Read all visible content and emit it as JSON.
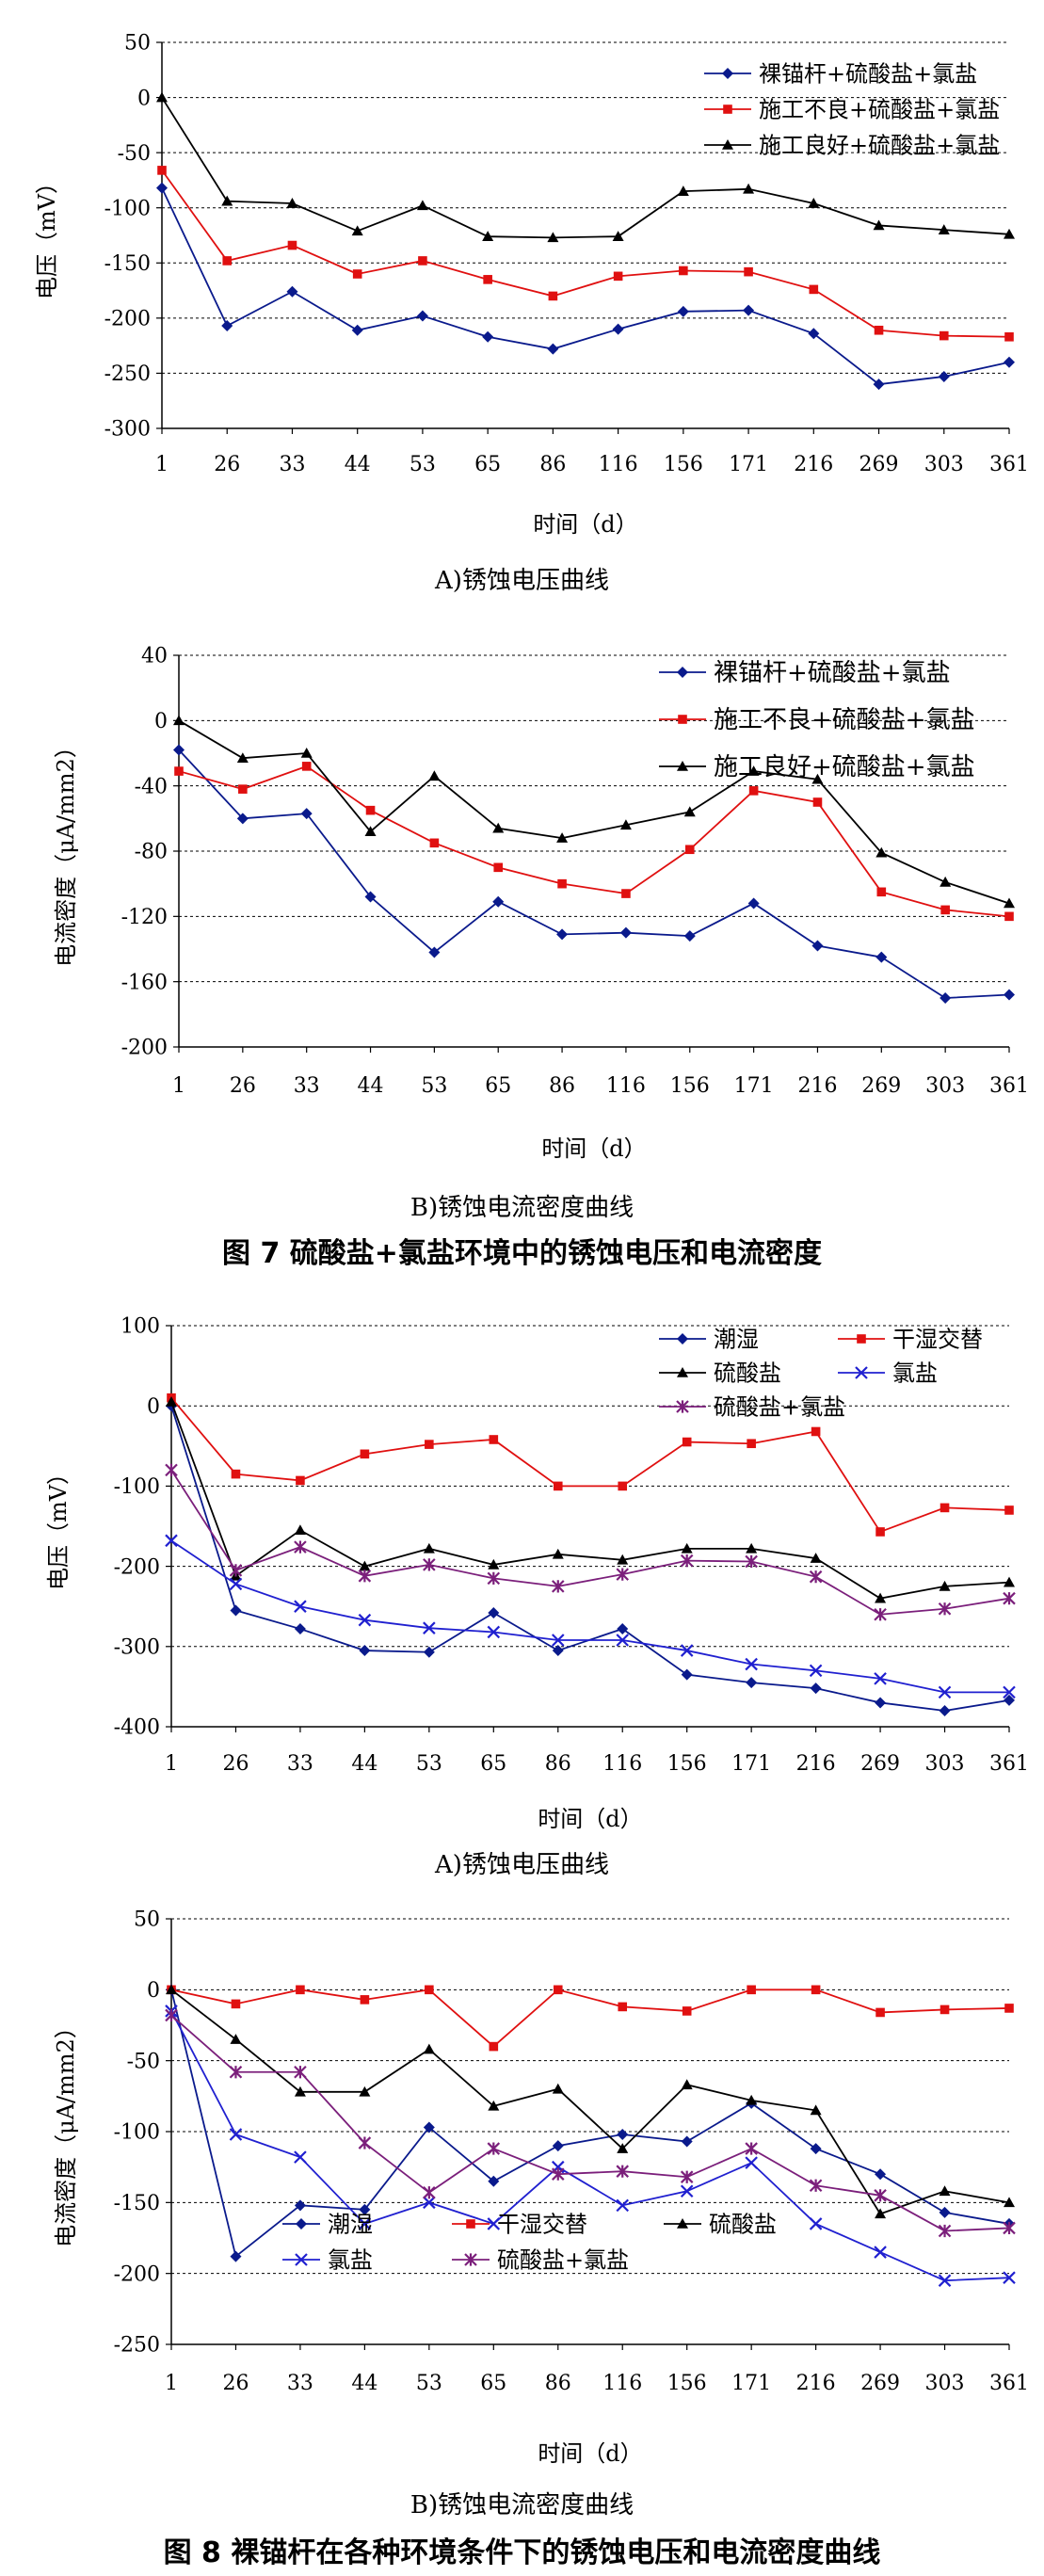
{
  "figure7": {
    "caption": "图 7  硫酸盐+氯盐环境中的锈蚀电压和电流密度",
    "sub_a": "A)锈蚀电压曲线",
    "sub_b": "B)锈蚀电流密度曲线"
  },
  "figure8": {
    "caption": "图 8  裸锚杆在各种环境条件下的锈蚀电压和电流密度曲线",
    "sub_a": "A)锈蚀电压曲线",
    "sub_b": "B)锈蚀电流密度曲线"
  },
  "chart_data": [
    {
      "type": "line",
      "categories": [
        "1",
        "26",
        "33",
        "44",
        "53",
        "65",
        "86",
        "116",
        "156",
        "171",
        "216",
        "269",
        "303",
        "361"
      ],
      "xlabel": "时间（d）",
      "ylabel": "电压（mV）",
      "ylim": [
        -300,
        50
      ],
      "yticks": [
        50,
        0,
        -50,
        -100,
        -150,
        -200,
        -250,
        -300
      ],
      "grid": "dashed-horizontal",
      "legend_position": "top-right",
      "series": [
        {
          "name": "裸锚杆+硫酸盐+氯盐",
          "marker": "diamond",
          "color": "#0a1a8c",
          "values": [
            -82,
            -207,
            -176,
            -211,
            -198,
            -217,
            -228,
            -210,
            -194,
            -193,
            -214,
            -260,
            -253,
            -240
          ]
        },
        {
          "name": "施工不良+硫酸盐+氯盐",
          "marker": "square",
          "color": "#e01010",
          "values": [
            -66,
            -148,
            -134,
            -160,
            -148,
            -165,
            -180,
            -162,
            -157,
            -158,
            -174,
            -211,
            -216,
            -217
          ]
        },
        {
          "name": "施工良好+硫酸盐+氯盐",
          "marker": "triangle",
          "color": "#000000",
          "values": [
            0,
            -94,
            -96,
            -121,
            -98,
            -126,
            -127,
            -126,
            -85,
            -83,
            -96,
            -116,
            -120,
            -124
          ]
        }
      ]
    },
    {
      "type": "line",
      "categories": [
        "1",
        "26",
        "33",
        "44",
        "53",
        "65",
        "86",
        "116",
        "156",
        "171",
        "216",
        "269",
        "303",
        "361"
      ],
      "xlabel": "时间（d）",
      "ylabel": "电流密度（μA/mm2）",
      "ylim": [
        -200,
        40
      ],
      "yticks": [
        40,
        0,
        -40,
        -80,
        -120,
        -160,
        -200
      ],
      "grid": "dashed-horizontal",
      "legend_position": "top-right",
      "series": [
        {
          "name": "裸锚杆+硫酸盐+氯盐",
          "marker": "diamond",
          "color": "#0a1a8c",
          "values": [
            -18,
            -60,
            -57,
            -108,
            -142,
            -111,
            -131,
            -130,
            -132,
            -112,
            -138,
            -145,
            -170,
            -168
          ]
        },
        {
          "name": "施工不良+硫酸盐+氯盐",
          "marker": "square",
          "color": "#e01010",
          "values": [
            -31,
            -42,
            -28,
            -55,
            -75,
            -90,
            -100,
            -106,
            -79,
            -43,
            -50,
            -105,
            -116,
            -120
          ]
        },
        {
          "name": "施工良好+硫酸盐+氯盐",
          "marker": "triangle",
          "color": "#000000",
          "values": [
            0,
            -23,
            -20,
            -68,
            -34,
            -66,
            -72,
            -64,
            -56,
            -31,
            -36,
            -81,
            -99,
            -112
          ]
        }
      ]
    },
    {
      "type": "line",
      "categories": [
        "1",
        "26",
        "33",
        "44",
        "53",
        "65",
        "86",
        "116",
        "156",
        "171",
        "216",
        "269",
        "303",
        "361"
      ],
      "xlabel": "时间（d）",
      "ylabel": "电压（mV）",
      "ylim": [
        -400,
        100
      ],
      "yticks": [
        100,
        0,
        -100,
        -200,
        -300,
        -400
      ],
      "grid": "dashed-horizontal",
      "legend_position": "top",
      "series": [
        {
          "name": "潮湿",
          "marker": "diamond",
          "color": "#0a1a8c",
          "values": [
            0,
            -255,
            -278,
            -305,
            -307,
            -258,
            -305,
            -278,
            -335,
            -345,
            -352,
            -370,
            -380,
            -367
          ]
        },
        {
          "name": "干湿交替",
          "marker": "square",
          "color": "#e01010",
          "values": [
            10,
            -85,
            -93,
            -60,
            -48,
            -42,
            -100,
            -100,
            -45,
            -47,
            -32,
            -157,
            -127,
            -130
          ]
        },
        {
          "name": "硫酸盐",
          "marker": "triangle",
          "color": "#000000",
          "values": [
            5,
            -212,
            -155,
            -200,
            -178,
            -198,
            -185,
            -192,
            -178,
            -178,
            -190,
            -240,
            -225,
            -220
          ]
        },
        {
          "name": "氯盐",
          "marker": "x",
          "color": "#2020d0",
          "values": [
            -168,
            -222,
            -250,
            -267,
            -277,
            -282,
            -292,
            -292,
            -305,
            -322,
            -330,
            -340,
            -357,
            -357
          ]
        },
        {
          "name": "硫酸盐+氯盐",
          "marker": "star",
          "color": "#7b1f7b",
          "values": [
            -80,
            -205,
            -176,
            -212,
            -198,
            -215,
            -225,
            -210,
            -193,
            -194,
            -213,
            -260,
            -253,
            -240
          ]
        }
      ]
    },
    {
      "type": "line",
      "categories": [
        "1",
        "26",
        "33",
        "44",
        "53",
        "65",
        "86",
        "116",
        "156",
        "171",
        "216",
        "269",
        "303",
        "361"
      ],
      "xlabel": "时间（d）",
      "ylabel": "电流密度（μA/mm2）",
      "ylim": [
        -250,
        50
      ],
      "yticks": [
        50,
        0,
        -50,
        -100,
        -150,
        -200,
        -250
      ],
      "grid": "dashed-horizontal",
      "legend_position": "bottom",
      "series": [
        {
          "name": "潮湿",
          "marker": "diamond",
          "color": "#0a1a8c",
          "values": [
            0,
            -188,
            -152,
            -155,
            -97,
            -135,
            -110,
            -102,
            -107,
            -80,
            -112,
            -130,
            -157,
            -165
          ]
        },
        {
          "name": "干湿交替",
          "marker": "square",
          "color": "#e01010",
          "values": [
            0,
            -10,
            0,
            -7,
            0,
            -40,
            0,
            -12,
            -15,
            0,
            0,
            -16,
            -14,
            -13
          ]
        },
        {
          "name": "硫酸盐",
          "marker": "triangle",
          "color": "#000000",
          "values": [
            0,
            -35,
            -72,
            -72,
            -42,
            -82,
            -70,
            -112,
            -67,
            -78,
            -85,
            -158,
            -142,
            -150
          ]
        },
        {
          "name": "氯盐",
          "marker": "x",
          "color": "#2020d0",
          "values": [
            -15,
            -102,
            -118,
            -165,
            -150,
            -165,
            -125,
            -152,
            -142,
            -122,
            -165,
            -185,
            -205,
            -203
          ]
        },
        {
          "name": "硫酸盐+氯盐",
          "marker": "star",
          "color": "#7b1f7b",
          "values": [
            -18,
            -58,
            -58,
            -108,
            -143,
            -112,
            -130,
            -128,
            -132,
            -112,
            -138,
            -145,
            -170,
            -168
          ]
        }
      ]
    }
  ]
}
